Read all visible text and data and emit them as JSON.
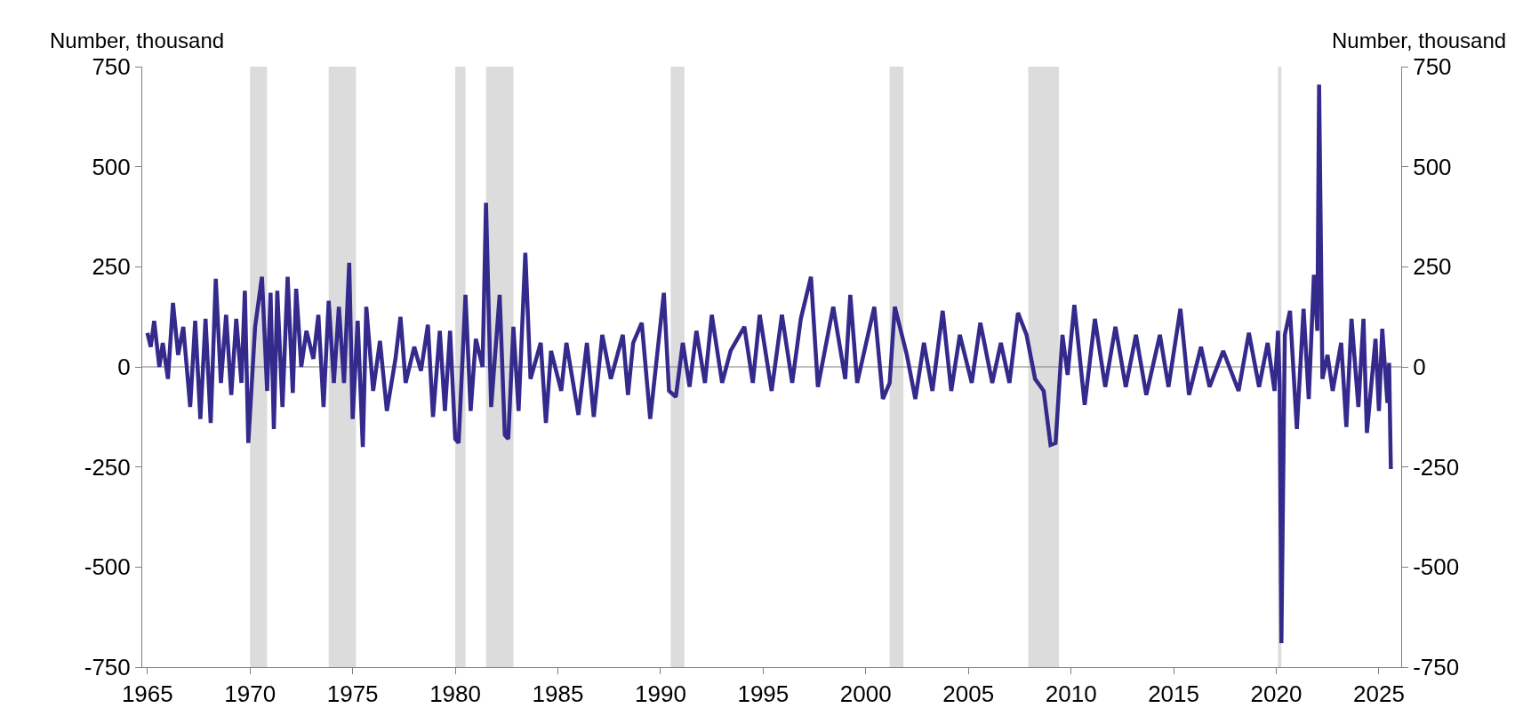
{
  "chart_data": {
    "type": "line",
    "ylabel": "Number, thousand",
    "y2label": "Number, thousand",
    "x": [
      "1965-01",
      "1965-03",
      "1965-05",
      "1965-08",
      "1965-10",
      "1966-01",
      "1966-04",
      "1966-07",
      "1966-10",
      "1967-02",
      "1967-05",
      "1967-08",
      "1967-11",
      "1968-02",
      "1968-05",
      "1968-08",
      "1968-11",
      "1969-02",
      "1969-05",
      "1969-08",
      "1969-10",
      "1969-12",
      "1970-04",
      "1970-08",
      "1970-11",
      "1971-01",
      "1971-03",
      "1971-05",
      "1971-08",
      "1971-11",
      "1972-02",
      "1972-04",
      "1972-07",
      "1972-10",
      "1973-02",
      "1973-05",
      "1973-08",
      "1973-11",
      "1974-02",
      "1974-05",
      "1974-08",
      "1974-11",
      "1975-01",
      "1975-04",
      "1975-07",
      "1975-09",
      "1976-01",
      "1976-05",
      "1976-09",
      "1977-02",
      "1977-05",
      "1977-08",
      "1978-01",
      "1978-05",
      "1978-09",
      "1978-12",
      "1979-04",
      "1979-07",
      "1979-10",
      "1980-01",
      "1980-03",
      "1980-07",
      "1980-10",
      "1981-01",
      "1981-05",
      "1981-07",
      "1981-10",
      "1982-03",
      "1982-06",
      "1982-08",
      "1982-11",
      "1983-02",
      "1983-06",
      "1983-09",
      "1984-03",
      "1984-06",
      "1984-09",
      "1985-03",
      "1985-06",
      "1986-01",
      "1986-06",
      "1986-10",
      "1987-03",
      "1987-08",
      "1988-03",
      "1988-06",
      "1988-09",
      "1989-02",
      "1989-07",
      "1990-03",
      "1990-06",
      "1990-10",
      "1991-02",
      "1991-06",
      "1991-10",
      "1992-03",
      "1992-07",
      "1993-01",
      "1993-06",
      "1994-02",
      "1994-07",
      "1994-11",
      "1995-06",
      "1995-12",
      "1996-06",
      "1996-11",
      "1997-05",
      "1997-09",
      "1998-06",
      "1999-01",
      "1999-04",
      "1999-08",
      "2000-06",
      "2000-11",
      "2001-03",
      "2001-06",
      "2002-01",
      "2002-06",
      "2002-11",
      "2003-04",
      "2003-10",
      "2004-03",
      "2004-08",
      "2005-03",
      "2005-08",
      "2006-03",
      "2006-08",
      "2007-01",
      "2007-06",
      "2007-11",
      "2008-04",
      "2008-09",
      "2009-01",
      "2009-04",
      "2009-08",
      "2009-11",
      "2010-03",
      "2010-09",
      "2011-03",
      "2011-09",
      "2012-03",
      "2012-09",
      "2013-03",
      "2013-09",
      "2014-05",
      "2014-10",
      "2015-05",
      "2015-10",
      "2016-05",
      "2016-10",
      "2017-06",
      "2018-03",
      "2018-09",
      "2019-03",
      "2019-08",
      "2019-12",
      "2020-02",
      "2020-03",
      "2020-04",
      "2020-06",
      "2020-09",
      "2021-01",
      "2021-05",
      "2021-08",
      "2021-11",
      "2022-01",
      "2022-02",
      "2022-04",
      "2022-07",
      "2022-10",
      "2023-03",
      "2023-06",
      "2023-09",
      "2024-01",
      "2024-04",
      "2024-06",
      "2024-11",
      "2025-01",
      "2025-03",
      "2025-06",
      "2025-07",
      "2025-08"
    ],
    "series": [
      {
        "color": "#332a8c",
        "values": [
          85,
          50,
          115,
          0,
          60,
          -30,
          160,
          30,
          100,
          -100,
          115,
          -130,
          120,
          -140,
          220,
          -40,
          130,
          -70,
          120,
          -40,
          190,
          -190,
          100,
          225,
          -60,
          185,
          -155,
          190,
          -100,
          225,
          -65,
          195,
          0,
          90,
          20,
          130,
          -100,
          165,
          -40,
          150,
          -40,
          260,
          -130,
          115,
          -200,
          150,
          -60,
          65,
          -110,
          20,
          125,
          -40,
          50,
          -10,
          105,
          -125,
          90,
          -110,
          90,
          -180,
          -190,
          180,
          -110,
          70,
          0,
          410,
          -100,
          180,
          -170,
          -180,
          100,
          -110,
          285,
          -30,
          60,
          -140,
          40,
          -60,
          60,
          -120,
          60,
          -125,
          80,
          -30,
          80,
          -70,
          60,
          110,
          -130,
          185,
          -60,
          -75,
          60,
          -50,
          90,
          -40,
          130,
          -40,
          40,
          100,
          -40,
          130,
          -60,
          130,
          -40,
          120,
          225,
          -50,
          150,
          -30,
          180,
          -40,
          150,
          -80,
          -40,
          150,
          30,
          -80,
          60,
          -60,
          140,
          -60,
          80,
          -40,
          110,
          -40,
          60,
          -40,
          135,
          80,
          -30,
          -60,
          -195,
          -190,
          80,
          -20,
          155,
          -95,
          120,
          -50,
          100,
          -50,
          80,
          -70,
          80,
          -50,
          145,
          -70,
          50,
          -50,
          40,
          -60,
          85,
          -50,
          60,
          -60,
          90,
          -40,
          -690,
          80,
          140,
          -155,
          145,
          -80,
          230,
          90,
          705,
          -30,
          30,
          -60,
          60,
          -150,
          120,
          -100,
          120,
          -165,
          70,
          -110,
          95,
          -90,
          10,
          -255
        ]
      }
    ],
    "xlim": [
      "1964-10",
      "2026-02"
    ],
    "xticks": [
      {
        "value": "1965-01",
        "label": "1965"
      },
      {
        "value": "1970-01",
        "label": "1970"
      },
      {
        "value": "1975-01",
        "label": "1975"
      },
      {
        "value": "1980-01",
        "label": "1980"
      },
      {
        "value": "1985-01",
        "label": "1985"
      },
      {
        "value": "1990-01",
        "label": "1990"
      },
      {
        "value": "1995-01",
        "label": "1995"
      },
      {
        "value": "2000-01",
        "label": "2000"
      },
      {
        "value": "2005-01",
        "label": "2005"
      },
      {
        "value": "2010-01",
        "label": "2010"
      },
      {
        "value": "2015-01",
        "label": "2015"
      },
      {
        "value": "2020-01",
        "label": "2020"
      },
      {
        "value": "2025-01",
        "label": "2025"
      }
    ],
    "ylim": [
      -750,
      750
    ],
    "yticks": [
      -750,
      -500,
      -250,
      0,
      250,
      500,
      750
    ],
    "y2lim": [
      -750,
      750
    ],
    "y2ticks": [
      -750,
      -500,
      -250,
      0,
      250,
      500,
      750
    ],
    "bands": [
      {
        "axis": "x",
        "from": "1970-01",
        "to": "1970-11",
        "color": "#dcdcdc"
      },
      {
        "axis": "x",
        "from": "1973-11",
        "to": "1975-03",
        "color": "#dcdcdc"
      },
      {
        "axis": "x",
        "from": "1980-01",
        "to": "1980-07",
        "color": "#dcdcdc"
      },
      {
        "axis": "x",
        "from": "1981-07",
        "to": "1982-11",
        "color": "#dcdcdc"
      },
      {
        "axis": "x",
        "from": "1990-07",
        "to": "1991-03",
        "color": "#dcdcdc"
      },
      {
        "axis": "x",
        "from": "2001-03",
        "to": "2001-11",
        "color": "#dcdcdc"
      },
      {
        "axis": "x",
        "from": "2007-12",
        "to": "2009-06",
        "color": "#dcdcdc"
      },
      {
        "axis": "x",
        "from": "2020-02",
        "to": "2020-04",
        "color": "#dcdcdc"
      }
    ],
    "ref_lines": [
      {
        "axis": "y",
        "value": 0,
        "color": "#808080"
      }
    ],
    "grid": false,
    "marker": "none",
    "line_style": "solid"
  }
}
